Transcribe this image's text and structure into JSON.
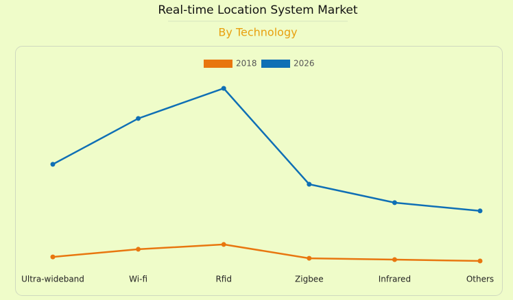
{
  "chart_data": {
    "type": "line",
    "title": "Real-time Location System Market",
    "subtitle": "By Technology",
    "categories": [
      "Ultra-wideband",
      "Wi-fi",
      "Rfid",
      "Zigbee",
      "Infrared",
      "Others"
    ],
    "series": [
      {
        "name": "2018",
        "color": "#e8760f",
        "values": [
          7.1,
          11.1,
          13.6,
          6.4,
          5.7,
          5.0
        ]
      },
      {
        "name": "2026",
        "color": "#0f6fb5",
        "values": [
          55.4,
          79.3,
          95,
          45,
          35.4,
          31.1
        ]
      }
    ],
    "ylim": [
      0,
      100
    ]
  }
}
